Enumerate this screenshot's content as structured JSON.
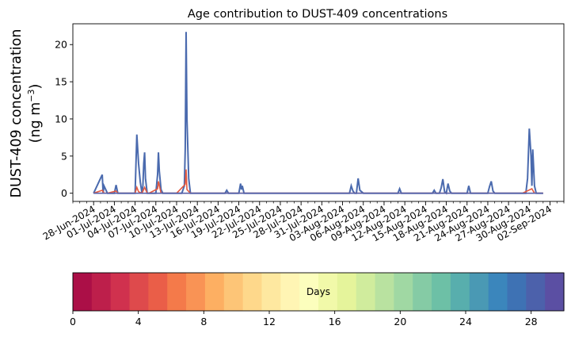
{
  "chart_data": {
    "type": "area",
    "title": "Age contribution to DUST-409 concentrations",
    "ylabel_line1": "DUST-409 concentration",
    "ylabel_line2_prefix": "(ng m",
    "ylabel_line2_sup": "−3",
    "ylabel_line2_suffix": ")",
    "ylim": [
      -1.1,
      22.8
    ],
    "yticks": [
      0,
      5,
      10,
      15,
      20
    ],
    "xlim": [
      "2024-06-25",
      "2024-09-04"
    ],
    "xticks": [
      "28-Jun-2024",
      "01-Jul-2024",
      "04-Jul-2024",
      "07-Jul-2024",
      "10-Jul-2024",
      "13-Jul-2024",
      "16-Jul-2024",
      "19-Jul-2024",
      "22-Jul-2024",
      "25-Jul-2024",
      "28-Jul-2024",
      "31-Jul-2024",
      "03-Aug-2024",
      "06-Aug-2024",
      "09-Aug-2024",
      "12-Aug-2024",
      "15-Aug-2024",
      "18-Aug-2024",
      "21-Aug-2024",
      "24-Aug-2024",
      "27-Aug-2024",
      "30-Aug-2024",
      "02-Sep-2024"
    ],
    "series_total": {
      "x": [
        "2024-06-28",
        "2024-06-29 06:00",
        "2024-06-29 09:00",
        "2024-06-29 12:00",
        "2024-06-30",
        "2024-07-01",
        "2024-07-01 06:00",
        "2024-07-01 12:00",
        "2024-07-02",
        "2024-07-04",
        "2024-07-04 06:00",
        "2024-07-04 12:00",
        "2024-07-04 18:00",
        "2024-07-05",
        "2024-07-05 03:00",
        "2024-07-05 06:00",
        "2024-07-05 09:00",
        "2024-07-05 12:00",
        "2024-07-05 18:00",
        "2024-07-06",
        "2024-07-07",
        "2024-07-07 06:00",
        "2024-07-07 09:00",
        "2024-07-07 12:00",
        "2024-07-07 18:00",
        "2024-07-08",
        "2024-07-10",
        "2024-07-10 18:00",
        "2024-07-11 03:00",
        "2024-07-11 06:00",
        "2024-07-11 09:00",
        "2024-07-11 12:00",
        "2024-07-11 18:00",
        "2024-07-12",
        "2024-07-17",
        "2024-07-17 06:00",
        "2024-07-17 12:00",
        "2024-07-18 12:00",
        "2024-07-19",
        "2024-07-19 06:00",
        "2024-07-19 09:00",
        "2024-07-19 12:00",
        "2024-07-19 18:00",
        "2024-07-20",
        "2024-07-21",
        "2024-07-30",
        "2024-08-04",
        "2024-08-04 06:00",
        "2024-08-04 12:00",
        "2024-08-04 18:00",
        "2024-08-05",
        "2024-08-05 06:00",
        "2024-08-05 12:00",
        "2024-08-06",
        "2024-08-11",
        "2024-08-11 06:00",
        "2024-08-11 12:00",
        "2024-08-13",
        "2024-08-16",
        "2024-08-16 06:00",
        "2024-08-16 12:00",
        "2024-08-17",
        "2024-08-17 06:00",
        "2024-08-17 12:00",
        "2024-08-17 18:00",
        "2024-08-18",
        "2024-08-18 06:00",
        "2024-08-18 12:00",
        "2024-08-18 18:00",
        "2024-08-19",
        "2024-08-21",
        "2024-08-21 06:00",
        "2024-08-21 12:00",
        "2024-08-24",
        "2024-08-24 06:00",
        "2024-08-24 12:00",
        "2024-08-24 18:00",
        "2024-08-25",
        "2024-08-29 12:00",
        "2024-08-29 18:00",
        "2024-08-30",
        "2024-08-30 06:00",
        "2024-08-30 09:00",
        "2024-08-30 12:00",
        "2024-08-30 18:00",
        "2024-08-31",
        "2024-08-31 06:00",
        "2024-08-31 12:00",
        "2024-09-01"
      ],
      "y": [
        0,
        2.5,
        0,
        1,
        0,
        0,
        1.1,
        0,
        0,
        0,
        7.9,
        4,
        1.5,
        0,
        1,
        4,
        5.5,
        2,
        0,
        0,
        0,
        2.5,
        5.5,
        3,
        0.5,
        0,
        0,
        0,
        1,
        6,
        21.7,
        10,
        2,
        0,
        0,
        0.4,
        0,
        0,
        0,
        1.3,
        0.5,
        1,
        0,
        0,
        0,
        0,
        0,
        1,
        0.3,
        0,
        0,
        2,
        0.4,
        0,
        0,
        0.6,
        0,
        0,
        0,
        0.4,
        0,
        0,
        0.7,
        1.9,
        0.2,
        0,
        1.3,
        0.3,
        0,
        0,
        0,
        1,
        0,
        0,
        0.9,
        1.6,
        0.3,
        0,
        0,
        2,
        8.7,
        5,
        1,
        5.9,
        1,
        0,
        0,
        0,
        0
      ]
    },
    "series_young": {
      "x": [
        "2024-06-28",
        "2024-06-29 06:00",
        "2024-06-29 12:00",
        "2024-06-30",
        "2024-07-01 06:00",
        "2024-07-01 12:00",
        "2024-07-04",
        "2024-07-04 06:00",
        "2024-07-04 12:00",
        "2024-07-05",
        "2024-07-05 09:00",
        "2024-07-05 18:00",
        "2024-07-06",
        "2024-07-07 06:00",
        "2024-07-07 09:00",
        "2024-07-07 18:00",
        "2024-07-10",
        "2024-07-11 06:00",
        "2024-07-11 09:00",
        "2024-07-11 12:00",
        "2024-07-12",
        "2024-08-29",
        "2024-08-30 09:00",
        "2024-08-30 18:00",
        "2024-09-01"
      ],
      "y": [
        0,
        0.4,
        0,
        0,
        0.3,
        0,
        0,
        0.8,
        0.2,
        0,
        0.8,
        0,
        0,
        0.6,
        1.6,
        0,
        0,
        1.2,
        3.2,
        0.5,
        0,
        0,
        0.6,
        0,
        0
      ]
    },
    "colorbar": {
      "label": "Days",
      "ticks": [
        0,
        4,
        8,
        12,
        16,
        20,
        24,
        28
      ],
      "range": [
        0,
        30
      ],
      "colors": [
        "#ab0f47",
        "#bd1f4b",
        "#d0314e",
        "#de4a4c",
        "#ea5e48",
        "#f47a4a",
        "#f99355",
        "#fdaf62",
        "#fdc577",
        "#fed88b",
        "#fee8a0",
        "#fff5b4",
        "#fcfebd",
        "#f1f9a9",
        "#e5f49b",
        "#d0ec9d",
        "#b9e2a0",
        "#a0d8a3",
        "#85cba5",
        "#6dc0a6",
        "#58ae ad",
        "#4a99b4",
        "#3b86bc",
        "#3e72b4",
        "#4c61ab",
        "#5b4fa3"
      ]
    }
  }
}
